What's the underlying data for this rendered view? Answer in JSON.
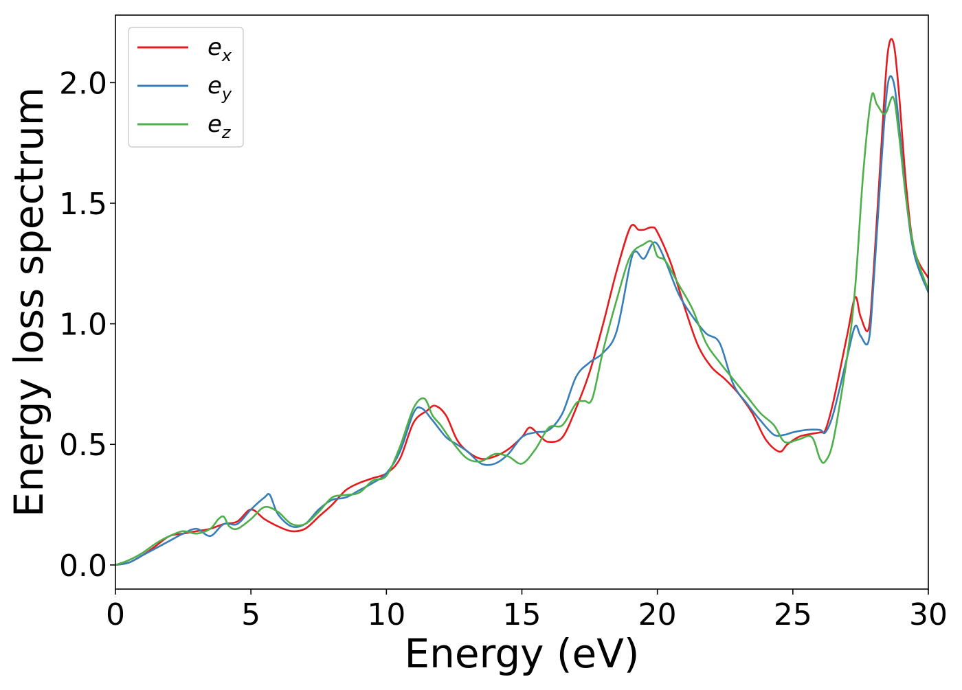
{
  "chart_data": {
    "type": "line",
    "title": "",
    "xlabel": "Energy (eV)",
    "ylabel": "Energy loss spectrum",
    "xlim": [
      0,
      30
    ],
    "ylim": [
      -0.1,
      2.28
    ],
    "xticks": [
      0,
      5,
      10,
      15,
      20,
      25,
      30
    ],
    "xtick_labels": [
      "0",
      "5",
      "10",
      "15",
      "20",
      "25",
      "30"
    ],
    "yticks": [
      0.0,
      0.5,
      1.0,
      1.5,
      2.0
    ],
    "ytick_labels": [
      "0.0",
      "0.5",
      "1.0",
      "1.5",
      "2.0"
    ],
    "grid": false,
    "legend_position": "top-left",
    "series": [
      {
        "name": "e_x",
        "label_base": "e",
        "label_sub": "x",
        "color": "#e41a1c",
        "x": [
          0,
          0.5,
          1,
          1.5,
          2,
          2.5,
          3,
          3.5,
          4,
          4.5,
          5,
          5.5,
          6,
          6.5,
          7,
          7.5,
          8,
          8.5,
          9,
          9.5,
          10,
          10.5,
          11,
          11.5,
          11.8,
          12.2,
          12.6,
          13,
          13.5,
          14,
          14.5,
          15,
          15.3,
          15.7,
          16,
          16.5,
          17,
          17.5,
          18,
          18.5,
          19,
          19.3,
          19.5,
          19.8,
          20,
          20.5,
          21,
          21.5,
          22,
          22.5,
          23,
          23.5,
          24,
          24.5,
          24.8,
          25.2,
          25.5,
          26,
          26.2,
          26.5,
          27,
          27.3,
          27.5,
          27.8,
          28,
          28.3,
          28.5,
          28.7,
          28.9,
          29.2,
          29.5,
          30
        ],
        "y": [
          0.0,
          0.01,
          0.04,
          0.08,
          0.12,
          0.13,
          0.14,
          0.15,
          0.17,
          0.18,
          0.23,
          0.19,
          0.16,
          0.14,
          0.15,
          0.2,
          0.25,
          0.31,
          0.34,
          0.36,
          0.38,
          0.44,
          0.59,
          0.64,
          0.66,
          0.62,
          0.52,
          0.47,
          0.44,
          0.45,
          0.48,
          0.53,
          0.57,
          0.53,
          0.51,
          0.53,
          0.65,
          0.8,
          1.0,
          1.22,
          1.4,
          1.39,
          1.39,
          1.4,
          1.38,
          1.25,
          1.07,
          0.91,
          0.82,
          0.77,
          0.71,
          0.63,
          0.52,
          0.47,
          0.5,
          0.53,
          0.54,
          0.55,
          0.56,
          0.68,
          0.95,
          1.11,
          1.03,
          0.98,
          1.25,
          1.8,
          2.12,
          2.17,
          1.98,
          1.55,
          1.3,
          1.19
        ]
      },
      {
        "name": "e_y",
        "label_base": "e",
        "label_sub": "y",
        "color": "#377eb8",
        "x": [
          0,
          0.5,
          1,
          1.5,
          2,
          2.5,
          3,
          3.5,
          4,
          4.5,
          5,
          5.5,
          5.7,
          6,
          6.5,
          7,
          7.5,
          8,
          8.5,
          9,
          9.5,
          10,
          10.5,
          11,
          11.3,
          11.7,
          12.2,
          12.6,
          13,
          13.5,
          14,
          14.5,
          15,
          15.5,
          16,
          16.5,
          17,
          17.5,
          18,
          18.5,
          19,
          19.2,
          19.5,
          19.8,
          20,
          20.3,
          20.8,
          21.3,
          21.8,
          22.3,
          22.8,
          23.3,
          23.8,
          24.3,
          24.7,
          25,
          25.5,
          26,
          26.2,
          26.5,
          27,
          27.3,
          27.5,
          27.8,
          28,
          28.3,
          28.5,
          28.7,
          28.9,
          29.2,
          29.5,
          30
        ],
        "y": [
          0.0,
          0.01,
          0.04,
          0.07,
          0.1,
          0.13,
          0.15,
          0.12,
          0.17,
          0.17,
          0.23,
          0.28,
          0.29,
          0.21,
          0.16,
          0.17,
          0.23,
          0.27,
          0.28,
          0.31,
          0.34,
          0.38,
          0.47,
          0.63,
          0.65,
          0.6,
          0.53,
          0.5,
          0.47,
          0.42,
          0.42,
          0.46,
          0.53,
          0.55,
          0.56,
          0.63,
          0.78,
          0.84,
          0.88,
          0.97,
          1.25,
          1.3,
          1.27,
          1.33,
          1.33,
          1.26,
          1.12,
          1.03,
          0.96,
          0.92,
          0.75,
          0.67,
          0.6,
          0.54,
          0.54,
          0.55,
          0.56,
          0.56,
          0.55,
          0.63,
          0.86,
          0.99,
          0.95,
          0.93,
          1.2,
          1.72,
          1.99,
          2.01,
          1.85,
          1.5,
          1.28,
          1.13
        ]
      },
      {
        "name": "e_z",
        "label_base": "e",
        "label_sub": "z",
        "color": "#4daf4a",
        "x": [
          0,
          0.5,
          1,
          1.5,
          2,
          2.5,
          3,
          3.5,
          3.8,
          4,
          4.2,
          4.5,
          5,
          5.5,
          6,
          6.5,
          7,
          7.5,
          8,
          8.5,
          9,
          9.5,
          10,
          10.5,
          11,
          11.4,
          11.7,
          12,
          12.5,
          13,
          13.5,
          14,
          14.5,
          15,
          15.5,
          16,
          16.5,
          17,
          17.3,
          17.6,
          18,
          18.5,
          19,
          19.5,
          19.8,
          20,
          20.3,
          20.8,
          21.3,
          21.8,
          22.3,
          22.8,
          23.3,
          23.8,
          24.3,
          24.7,
          25.2,
          25.7,
          26,
          26.2,
          26.5,
          27,
          27.3,
          27.6,
          27.9,
          28.1,
          28.4,
          28.7,
          28.9,
          29.2,
          29.5,
          30
        ],
        "y": [
          0.0,
          0.02,
          0.05,
          0.09,
          0.12,
          0.14,
          0.13,
          0.15,
          0.19,
          0.2,
          0.16,
          0.15,
          0.19,
          0.24,
          0.22,
          0.17,
          0.17,
          0.22,
          0.28,
          0.29,
          0.3,
          0.35,
          0.37,
          0.49,
          0.65,
          0.69,
          0.62,
          0.58,
          0.5,
          0.44,
          0.43,
          0.46,
          0.45,
          0.42,
          0.48,
          0.57,
          0.58,
          0.67,
          0.68,
          0.69,
          0.89,
          1.1,
          1.28,
          1.33,
          1.34,
          1.28,
          1.26,
          1.16,
          1.06,
          0.92,
          0.84,
          0.77,
          0.7,
          0.63,
          0.58,
          0.51,
          0.52,
          0.53,
          0.44,
          0.43,
          0.52,
          0.86,
          1.15,
          1.63,
          1.94,
          1.91,
          1.87,
          1.94,
          1.8,
          1.5,
          1.3,
          1.14
        ]
      }
    ]
  }
}
